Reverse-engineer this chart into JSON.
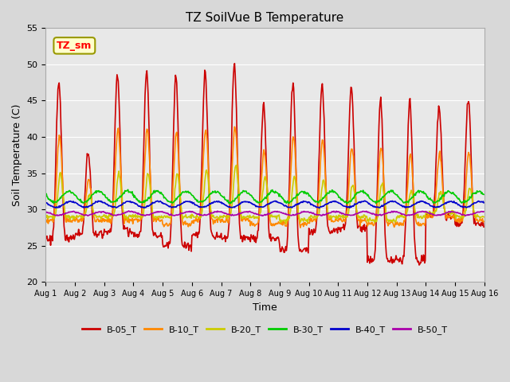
{
  "title": "TZ SoilVue B Temperature",
  "xlabel": "Time",
  "ylabel": "Soil Temperature (C)",
  "ylim": [
    20,
    55
  ],
  "yticks": [
    20,
    25,
    30,
    35,
    40,
    45,
    50,
    55
  ],
  "fig_facecolor": "#d8d8d8",
  "plot_bg_color": "#e8e8e8",
  "series": {
    "B-05_T": {
      "color": "#cc0000",
      "lw": 1.2
    },
    "B-10_T": {
      "color": "#ff8800",
      "lw": 1.2
    },
    "B-20_T": {
      "color": "#cccc00",
      "lw": 1.2
    },
    "B-30_T": {
      "color": "#00cc00",
      "lw": 1.2
    },
    "B-40_T": {
      "color": "#0000cc",
      "lw": 1.2
    },
    "B-50_T": {
      "color": "#aa00aa",
      "lw": 1.2
    }
  },
  "annotation": {
    "text": "TZ_sm",
    "bbox_facecolor": "#ffffcc",
    "bbox_edgecolor": "#999900"
  },
  "n_days": 15,
  "ppd": 48,
  "b05_peaks": [
    47.5,
    38.0,
    48.5,
    49.0,
    48.5,
    49.0,
    50.0,
    44.5,
    47.5,
    47.0,
    47.0,
    45.0,
    45.0,
    44.0,
    45.0
  ],
  "b05_mins": [
    26.0,
    26.5,
    27.0,
    26.5,
    25.0,
    26.5,
    26.0,
    26.0,
    24.5,
    27.0,
    27.5,
    23.0,
    23.0,
    29.0,
    28.0
  ],
  "b10_peaks": [
    40.0,
    34.0,
    41.0,
    41.0,
    40.5,
    41.0,
    41.5,
    38.0,
    40.0,
    39.5,
    38.5,
    38.5,
    37.5,
    37.5,
    38.0
  ],
  "b10_mins": [
    28.5,
    28.5,
    28.5,
    28.5,
    28.0,
    28.5,
    28.5,
    28.0,
    28.0,
    28.5,
    28.5,
    28.0,
    28.0,
    29.0,
    28.5
  ],
  "b20_peaks": [
    35.0,
    32.0,
    35.0,
    35.0,
    35.0,
    35.5,
    36.0,
    34.5,
    34.5,
    34.0,
    33.5,
    33.5,
    32.5,
    32.5,
    33.0
  ],
  "b20_mins": [
    29.0,
    29.0,
    29.0,
    29.0,
    29.0,
    29.0,
    29.0,
    29.0,
    28.5,
    29.0,
    29.0,
    28.5,
    29.0,
    29.5,
    29.0
  ],
  "b30_base": 31.0,
  "b30_amp": 1.5,
  "b40_base": 30.3,
  "b40_amp": 0.8,
  "b50_base": 29.2,
  "b50_amp": 0.5
}
